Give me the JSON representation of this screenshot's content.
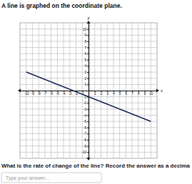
{
  "chart_data": {
    "type": "line",
    "title": "A line is graphed on the coordinate plane.",
    "x_label": "x",
    "y_label": "y",
    "x": [
      -10,
      10
    ],
    "values": [
      3,
      -5
    ],
    "color": "#1f2a5a",
    "xlim": [
      -11,
      11
    ],
    "ylim": [
      -11,
      11
    ],
    "xticks": [
      -10,
      -9,
      -8,
      -7,
      -6,
      -5,
      -4,
      -3,
      -2,
      -1,
      1,
      2,
      3,
      4,
      5,
      6,
      7,
      8,
      9,
      10
    ],
    "yticks": [
      -10,
      -9,
      -8,
      -7,
      -6,
      -5,
      -4,
      -3,
      -2,
      -1,
      1,
      2,
      3,
      4,
      5,
      6,
      7,
      8,
      9,
      10
    ],
    "grid": true,
    "annotations": [
      "What is the rate of change of the line? Record the answer as a decima",
      "Type your answer..."
    ]
  }
}
